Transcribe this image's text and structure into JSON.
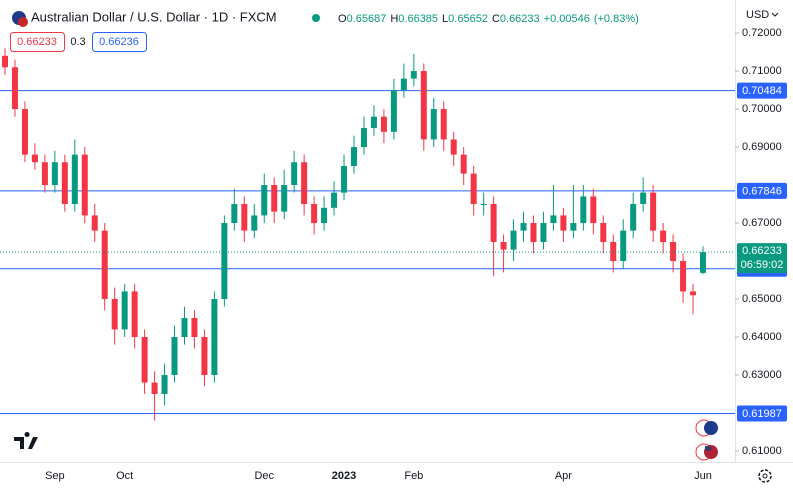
{
  "header": {
    "title": "Australian Dollar / U.S. Dollar · 1D · FXCM",
    "o": "O",
    "h": "H",
    "l": "L",
    "c": "C",
    "change": "+0.00546",
    "change_pct": "(+0.83%)",
    "sell": "0.66233",
    "spread": "0.3",
    "buy": "0.66236",
    "currency": "USD",
    "countdown": "06:59:02"
  },
  "chart_data": {
    "type": "candlestick",
    "categories": [
      null,
      null,
      null,
      null,
      null,
      "Sep",
      null,
      null,
      null,
      null,
      null,
      null,
      "Oct",
      null,
      null,
      null,
      null,
      null,
      null,
      null,
      null,
      null,
      null,
      null,
      null,
      null,
      "Dec",
      null,
      null,
      null,
      null,
      null,
      null,
      null,
      "2023",
      null,
      null,
      null,
      null,
      null,
      null,
      "Feb",
      null,
      null,
      null,
      null,
      null,
      null,
      null,
      null,
      null,
      null,
      null,
      null,
      null,
      null,
      "Apr",
      null,
      null,
      null,
      null,
      null,
      null,
      null,
      null,
      null,
      null,
      null,
      null,
      null,
      "Jun"
    ],
    "open": [
      0.714,
      0.711,
      0.7,
      0.688,
      0.686,
      0.68,
      0.686,
      0.675,
      0.688,
      0.672,
      0.668,
      0.65,
      0.642,
      0.652,
      0.64,
      0.628,
      0.625,
      0.63,
      0.64,
      0.645,
      0.64,
      0.63,
      0.65,
      0.67,
      0.675,
      0.668,
      0.672,
      0.68,
      0.673,
      0.68,
      0.686,
      0.675,
      0.67,
      0.674,
      0.678,
      0.685,
      0.69,
      0.695,
      0.698,
      0.694,
      0.705,
      0.708,
      0.71,
      0.692,
      0.7,
      0.692,
      0.688,
      0.683,
      0.675,
      0.675,
      0.665,
      0.663,
      0.668,
      0.67,
      0.665,
      0.67,
      0.672,
      0.668,
      0.67,
      0.677,
      0.67,
      0.665,
      0.66,
      0.668,
      0.675,
      0.678,
      0.668,
      0.665,
      0.66,
      0.652,
      0.65687
    ],
    "high": [
      0.716,
      0.713,
      0.702,
      0.691,
      0.688,
      0.689,
      0.688,
      0.692,
      0.69,
      0.675,
      0.67,
      0.653,
      0.654,
      0.654,
      0.642,
      0.631,
      0.633,
      0.643,
      0.648,
      0.647,
      0.642,
      0.652,
      0.672,
      0.679,
      0.677,
      0.675,
      0.683,
      0.682,
      0.684,
      0.689,
      0.688,
      0.677,
      0.677,
      0.681,
      0.688,
      0.693,
      0.698,
      0.701,
      0.7,
      0.708,
      0.712,
      0.7145,
      0.712,
      0.703,
      0.702,
      0.694,
      0.69,
      0.685,
      0.678,
      0.677,
      0.667,
      0.671,
      0.673,
      0.672,
      0.673,
      0.68,
      0.674,
      0.68,
      0.68,
      0.679,
      0.672,
      0.667,
      0.671,
      0.678,
      0.682,
      0.68,
      0.67,
      0.667,
      0.662,
      0.654,
      0.66385
    ],
    "low": [
      0.709,
      0.698,
      0.686,
      0.684,
      0.678,
      0.678,
      0.673,
      0.673,
      0.67,
      0.665,
      0.647,
      0.638,
      0.64,
      0.637,
      0.625,
      0.618,
      0.622,
      0.628,
      0.638,
      0.637,
      0.627,
      0.628,
      0.648,
      0.668,
      0.665,
      0.666,
      0.67,
      0.67,
      0.671,
      0.678,
      0.672,
      0.667,
      0.668,
      0.672,
      0.676,
      0.683,
      0.688,
      0.693,
      0.691,
      0.692,
      0.703,
      0.706,
      0.689,
      0.69,
      0.689,
      0.685,
      0.68,
      0.672,
      0.672,
      0.656,
      0.657,
      0.66,
      0.665,
      0.662,
      0.663,
      0.668,
      0.665,
      0.666,
      0.668,
      0.667,
      0.662,
      0.657,
      0.658,
      0.666,
      0.673,
      0.665,
      0.662,
      0.657,
      0.649,
      0.646,
      0.65652
    ],
    "close": [
      0.711,
      0.7,
      0.688,
      0.686,
      0.68,
      0.686,
      0.675,
      0.688,
      0.672,
      0.668,
      0.65,
      0.642,
      0.652,
      0.64,
      0.628,
      0.625,
      0.63,
      0.64,
      0.645,
      0.64,
      0.63,
      0.65,
      0.67,
      0.675,
      0.668,
      0.672,
      0.68,
      0.673,
      0.68,
      0.686,
      0.675,
      0.67,
      0.674,
      0.678,
      0.685,
      0.69,
      0.695,
      0.698,
      0.694,
      0.705,
      0.708,
      0.71,
      0.692,
      0.7,
      0.692,
      0.688,
      0.683,
      0.675,
      0.675,
      0.665,
      0.663,
      0.668,
      0.67,
      0.665,
      0.67,
      0.672,
      0.668,
      0.67,
      0.677,
      0.67,
      0.665,
      0.66,
      0.668,
      0.675,
      0.678,
      0.668,
      0.665,
      0.66,
      0.652,
      0.651,
      0.66233
    ],
    "up_color": "#089981",
    "down_color": "#f23645",
    "levels": [
      0.70484,
      0.67846,
      0.65797,
      0.61987
    ],
    "level_color": "#2962ff",
    "ylim": [
      0.6071,
      0.7287
    ],
    "yticks": [
      {
        "value": 0.72,
        "label": "0.72000"
      },
      {
        "value": 0.71,
        "label": "0.71000"
      },
      {
        "value": 0.7,
        "label": "0.70000"
      },
      {
        "value": 0.69,
        "label": "0.69000"
      },
      {
        "value": 0.67,
        "label": "0.67000"
      },
      {
        "value": 0.65,
        "label": "0.65000"
      },
      {
        "value": 0.64,
        "label": "0.64000"
      },
      {
        "value": 0.63,
        "label": "0.63000"
      },
      {
        "value": 0.61,
        "label": "0.61000"
      }
    ]
  }
}
